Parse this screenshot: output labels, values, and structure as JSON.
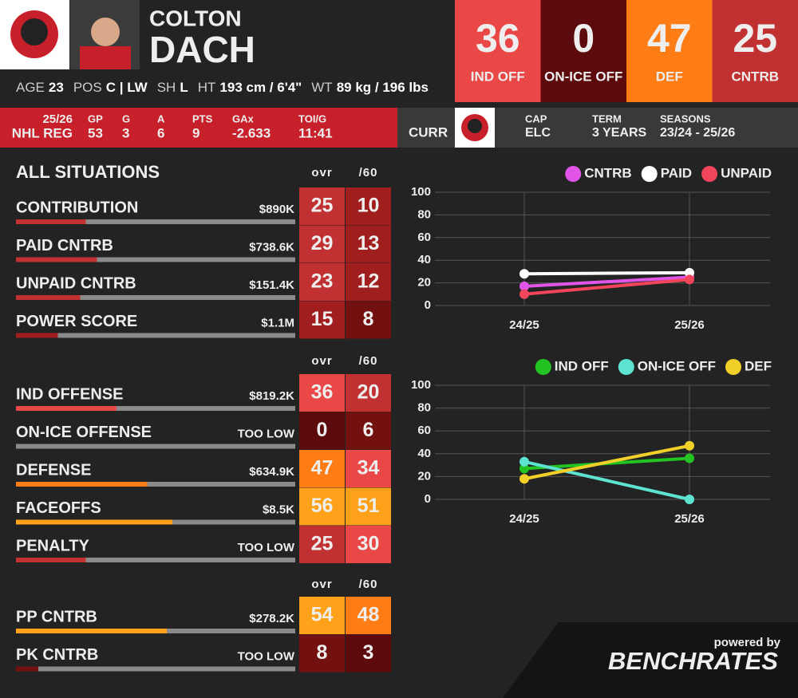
{
  "player": {
    "first_name": "COLTON",
    "last_name": "DACH"
  },
  "bio": [
    {
      "label": "AGE",
      "value": "23"
    },
    {
      "label": "POS",
      "value": "C | LW"
    },
    {
      "label": "SH",
      "value": "L"
    },
    {
      "label": "HT",
      "value": "193 cm / 6'4\""
    },
    {
      "label": "WT",
      "value": "89 kg / 196 lbs"
    }
  ],
  "scores": [
    {
      "value": 36,
      "label": "IND OFF"
    },
    {
      "value": 0,
      "label": "ON-ICE OFF"
    },
    {
      "value": 47,
      "label": "DEF"
    },
    {
      "value": 25,
      "label": "CNTRB"
    }
  ],
  "season": {
    "season": "25/26",
    "league": "NHL REG",
    "stats": [
      {
        "label": "GP",
        "value": 53
      },
      {
        "label": "G",
        "value": 3
      },
      {
        "label": "A",
        "value": 6
      },
      {
        "label": "PTS",
        "value": 9
      },
      {
        "label": "GAx",
        "value": -2.633
      },
      {
        "label": "TOI/G",
        "value": "11:41"
      }
    ]
  },
  "contract": {
    "status": "CURR",
    "items": [
      {
        "label": "CAP",
        "value": "ELC"
      },
      {
        "label": "TERM",
        "value": "3 YEARS"
      },
      {
        "label": "SEASONS",
        "value": "23/24 - 25/26"
      }
    ]
  },
  "sections": [
    {
      "title": "ALL SITUATIONS",
      "columns": [
        "ovr",
        "/60"
      ],
      "rows": [
        {
          "label": "CONTRIBUTION",
          "value": "$890K",
          "ovr": 25,
          "per60": 10
        },
        {
          "label": "PAID CNTRB",
          "value": "$738.6K",
          "ovr": 29,
          "per60": 13
        },
        {
          "label": "UNPAID CNTRB",
          "value": "$151.4K",
          "ovr": 23,
          "per60": 12
        },
        {
          "label": "POWER SCORE",
          "value": "$1.1M",
          "ovr": 15,
          "per60": 8
        }
      ]
    },
    {
      "columns": [
        "ovr",
        "/60"
      ],
      "rows": [
        {
          "label": "IND OFFENSE",
          "value": "$819.2K",
          "ovr": 36,
          "per60": 20
        },
        {
          "label": "ON-ICE OFFENSE",
          "value": "TOO LOW",
          "ovr": 0,
          "per60": 6
        },
        {
          "label": "DEFENSE",
          "value": "$634.9K",
          "ovr": 47,
          "per60": 34
        },
        {
          "label": "FACEOFFS",
          "value": "$8.5K",
          "ovr": 56,
          "per60": 51
        },
        {
          "label": "PENALTY",
          "value": "TOO LOW",
          "ovr": 25,
          "per60": 30
        }
      ]
    },
    {
      "columns": [
        "ovr",
        "/60"
      ],
      "rows": [
        {
          "label": "PP CNTRB",
          "value": "$278.2K",
          "ovr": 54,
          "per60": 48
        },
        {
          "label": "PK CNTRB",
          "value": "TOO LOW",
          "ovr": 8,
          "per60": 3
        }
      ]
    }
  ],
  "chart_data": [
    {
      "type": "line",
      "categories": [
        "24/25",
        "25/26"
      ],
      "ylim": [
        0,
        100
      ],
      "yticks": [
        0,
        20,
        40,
        60,
        80,
        100
      ],
      "grid": true,
      "legend": "top-right",
      "series": [
        {
          "name": "CNTRB",
          "color": "#e055e8",
          "values": [
            17,
            25
          ]
        },
        {
          "name": "PAID",
          "color": "#ffffff",
          "values": [
            28,
            29
          ]
        },
        {
          "name": "UNPAID",
          "color": "#f0455a",
          "values": [
            10,
            23
          ]
        }
      ]
    },
    {
      "type": "line",
      "categories": [
        "24/25",
        "25/26"
      ],
      "ylim": [
        0,
        100
      ],
      "yticks": [
        0,
        20,
        40,
        60,
        80,
        100
      ],
      "grid": true,
      "legend": "top-right",
      "series": [
        {
          "name": "IND OFF",
          "color": "#22c322",
          "values": [
            27,
            36
          ]
        },
        {
          "name": "ON-ICE OFF",
          "color": "#5de3d0",
          "values": [
            33,
            0
          ]
        },
        {
          "name": "DEF",
          "color": "#f2d02a",
          "values": [
            18,
            47
          ]
        }
      ]
    }
  ],
  "footer": {
    "powered_by": "powered by",
    "brand": "BENCHRATES"
  }
}
